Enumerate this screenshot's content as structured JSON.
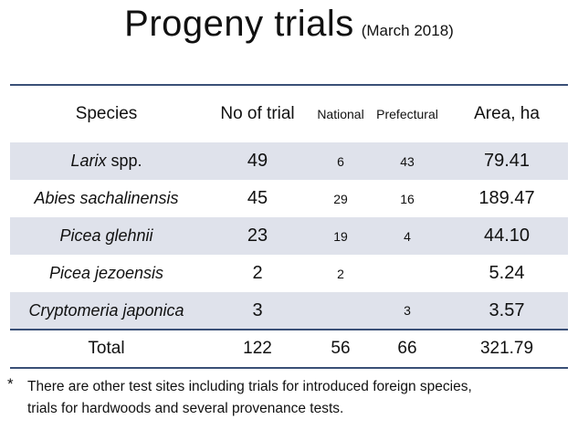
{
  "title": {
    "main": "Progeny trials",
    "sub": "(March 2018)"
  },
  "table": {
    "headers": {
      "species": "Species",
      "no_of_trial": "No of trial",
      "national": "National",
      "prefectural": "Prefectural",
      "area": "Area, ha"
    },
    "rows": [
      {
        "species_italic": "Larix",
        "species_tail": " spp.",
        "trials": "49",
        "national": "6",
        "prefectural": "43",
        "area": "79.41"
      },
      {
        "species_italic": "Abies sachalinensis",
        "species_tail": "",
        "trials": "45",
        "national": "29",
        "prefectural": "16",
        "area": "189.47"
      },
      {
        "species_italic": "Picea glehnii",
        "species_tail": "",
        "trials": "23",
        "national": "19",
        "prefectural": "4",
        "area": "44.10"
      },
      {
        "species_italic": "Picea jezoensis",
        "species_tail": "",
        "trials": "2",
        "national": "2",
        "prefectural": "",
        "area": "5.24"
      },
      {
        "species_italic": "Cryptomeria japonica",
        "species_tail": "",
        "trials": "3",
        "national": "",
        "prefectural": "3",
        "area": "3.57"
      }
    ],
    "total": {
      "label": "Total",
      "trials": "122",
      "national": "56",
      "prefectural": "66",
      "area": "321.79"
    }
  },
  "footnote": {
    "mark": "*",
    "line1": "There are other test sites including trials for introduced foreign species,",
    "line2": "trials for hardwoods and several provenance tests."
  }
}
